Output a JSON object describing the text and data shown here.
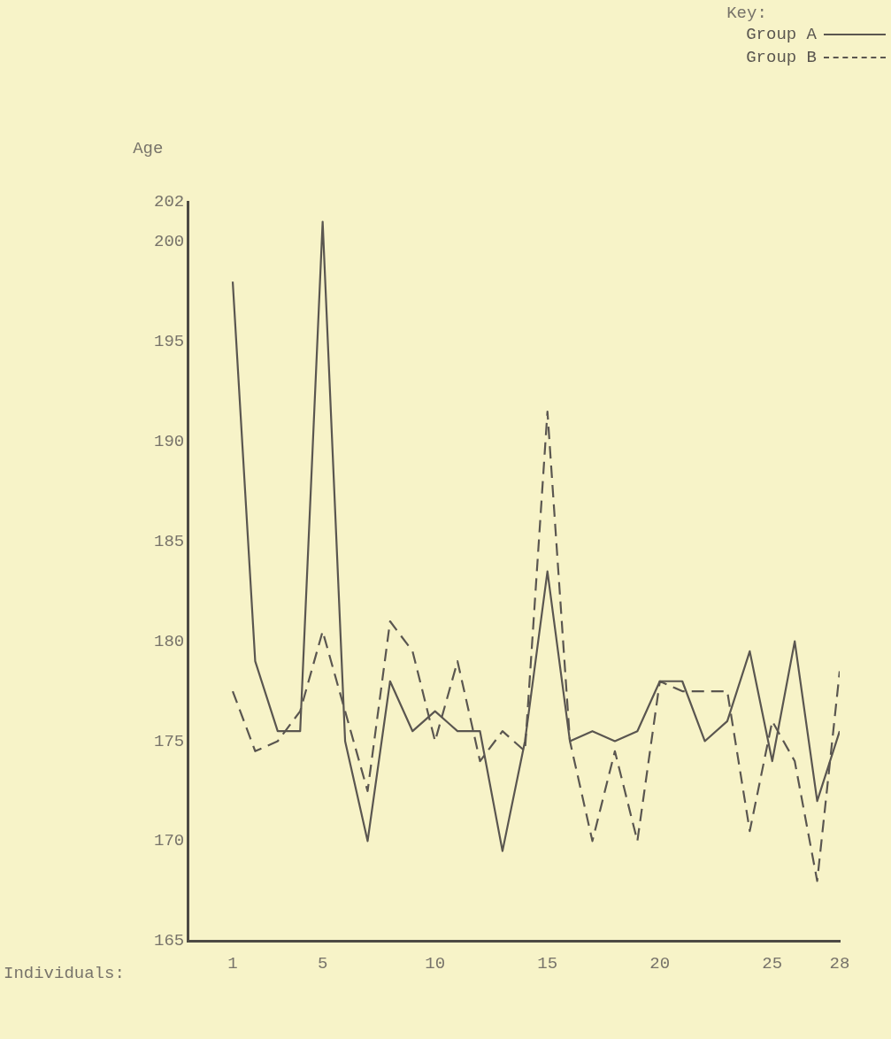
{
  "chart_data": {
    "type": "line",
    "xlabel": "Individuals:",
    "ylabel": "Age",
    "legend_title": "Key:",
    "legend": "top right",
    "grid": false,
    "marker": "none",
    "x": [
      1,
      2,
      3,
      4,
      5,
      6,
      7,
      8,
      9,
      10,
      11,
      12,
      13,
      14,
      15,
      16,
      17,
      18,
      19,
      20,
      21,
      22,
      23,
      24,
      25,
      26,
      27,
      28
    ],
    "xlim": [
      -1,
      28
    ],
    "xticks": [
      1,
      5,
      10,
      15,
      20,
      25,
      28
    ],
    "ylim": [
      165,
      202
    ],
    "yticks": [
      165,
      170,
      175,
      180,
      185,
      190,
      195,
      200,
      202
    ],
    "series": [
      {
        "name": "Group A",
        "color": "#5a5650",
        "line_style": "solid",
        "values": [
          198,
          179,
          175.5,
          175.5,
          201,
          175,
          170,
          178,
          175.5,
          176.5,
          175.5,
          175.5,
          169.5,
          175,
          183.5,
          175,
          175.5,
          175,
          175.5,
          178,
          178,
          175,
          176,
          179.5,
          174,
          180,
          172,
          175.5
        ]
      },
      {
        "name": "Group B",
        "color": "#5a5650",
        "line_style": "dashed",
        "values": [
          177.5,
          174.5,
          175,
          176.5,
          180.5,
          176.5,
          172.5,
          181,
          179.5,
          175,
          179,
          174,
          175.5,
          174.5,
          191.5,
          175,
          170,
          174.5,
          170,
          178,
          177.5,
          177.5,
          177.5,
          170.5,
          176,
          174,
          168,
          178.5
        ]
      }
    ]
  }
}
